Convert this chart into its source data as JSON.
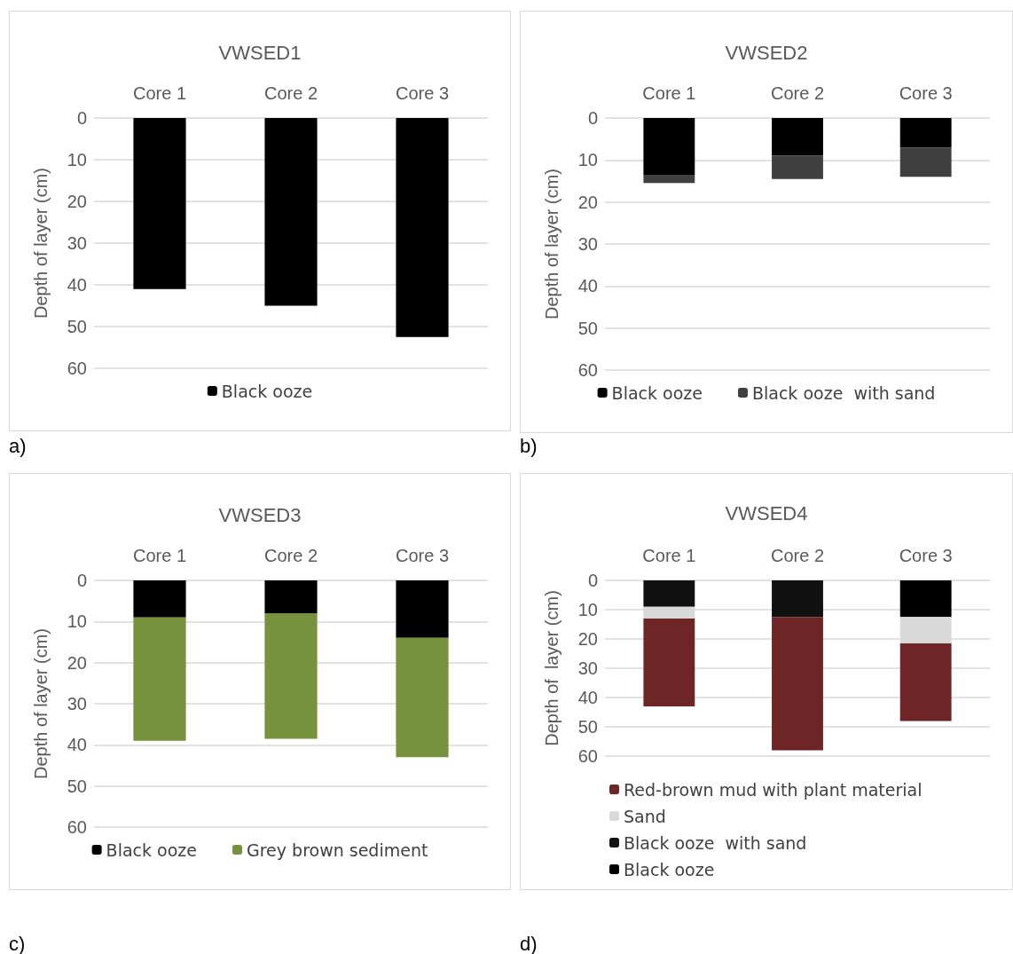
{
  "chart_data": [
    {
      "type": "bar",
      "title": "VWSED1",
      "ylabel": "Depth of layer (cm)",
      "categories": [
        "Core 1",
        "Core 2",
        "Core 3"
      ],
      "stacked": true,
      "ylim": [
        60,
        0
      ],
      "yticks": [
        0,
        10,
        20,
        30,
        40,
        50,
        60
      ],
      "grid": "y",
      "legend": "bottom",
      "annotations": [
        "a)"
      ],
      "series": [
        {
          "name": "Black ooze",
          "color": "#000000",
          "values": [
            41,
            45,
            52.5
          ]
        }
      ]
    },
    {
      "type": "bar",
      "title": "VWSED2",
      "ylabel": "Depth of layer (cm)",
      "categories": [
        "Core 1",
        "Core 2",
        "Core 3"
      ],
      "stacked": true,
      "ylim": [
        60,
        0
      ],
      "yticks": [
        0,
        10,
        20,
        30,
        40,
        50,
        60
      ],
      "grid": "y",
      "legend": "bottom",
      "annotations": [
        "b)"
      ],
      "series": [
        {
          "name": "Black ooze",
          "color": "#000000",
          "values": [
            13.5,
            9,
            7
          ]
        },
        {
          "name": "Black ooze  with sand",
          "color": "#404040",
          "values": [
            2,
            5.5,
            7
          ]
        }
      ]
    },
    {
      "type": "bar",
      "title": "VWSED3",
      "ylabel": "Depth of layer (cm)",
      "categories": [
        "Core 1",
        "Core 2",
        "Core 3"
      ],
      "stacked": true,
      "ylim": [
        60,
        0
      ],
      "yticks": [
        0,
        10,
        20,
        30,
        40,
        50,
        60
      ],
      "grid": "y",
      "legend": "bottom",
      "annotations": [
        "c)"
      ],
      "series": [
        {
          "name": "Black ooze",
          "color": "#000000",
          "values": [
            9,
            8,
            14
          ]
        },
        {
          "name": "Grey brown sediment",
          "color": "#76923c",
          "values": [
            30,
            30.5,
            29
          ]
        }
      ]
    },
    {
      "type": "bar",
      "title": "VWSED4",
      "ylabel": "Depth of  layer (cm)",
      "categories": [
        "Core 1",
        "Core 2",
        "Core 3"
      ],
      "stacked": true,
      "ylim": [
        60,
        0
      ],
      "yticks": [
        0,
        10,
        20,
        30,
        40,
        50,
        60
      ],
      "grid": "y",
      "legend": "bottom",
      "annotations": [
        "d)"
      ],
      "series": [
        {
          "name": "Black ooze",
          "color": "#000000",
          "values": [
            0,
            0,
            12.5
          ]
        },
        {
          "name": "Black ooze  with sand",
          "color": "#111111",
          "values": [
            9,
            12.5,
            0
          ]
        },
        {
          "name": "Sand",
          "color": "#d9d9d9",
          "values": [
            4,
            0,
            9
          ]
        },
        {
          "name": "Red-brown mud with plant material",
          "color": "#6e2525",
          "values": [
            30,
            45.5,
            26.5
          ]
        }
      ]
    }
  ]
}
